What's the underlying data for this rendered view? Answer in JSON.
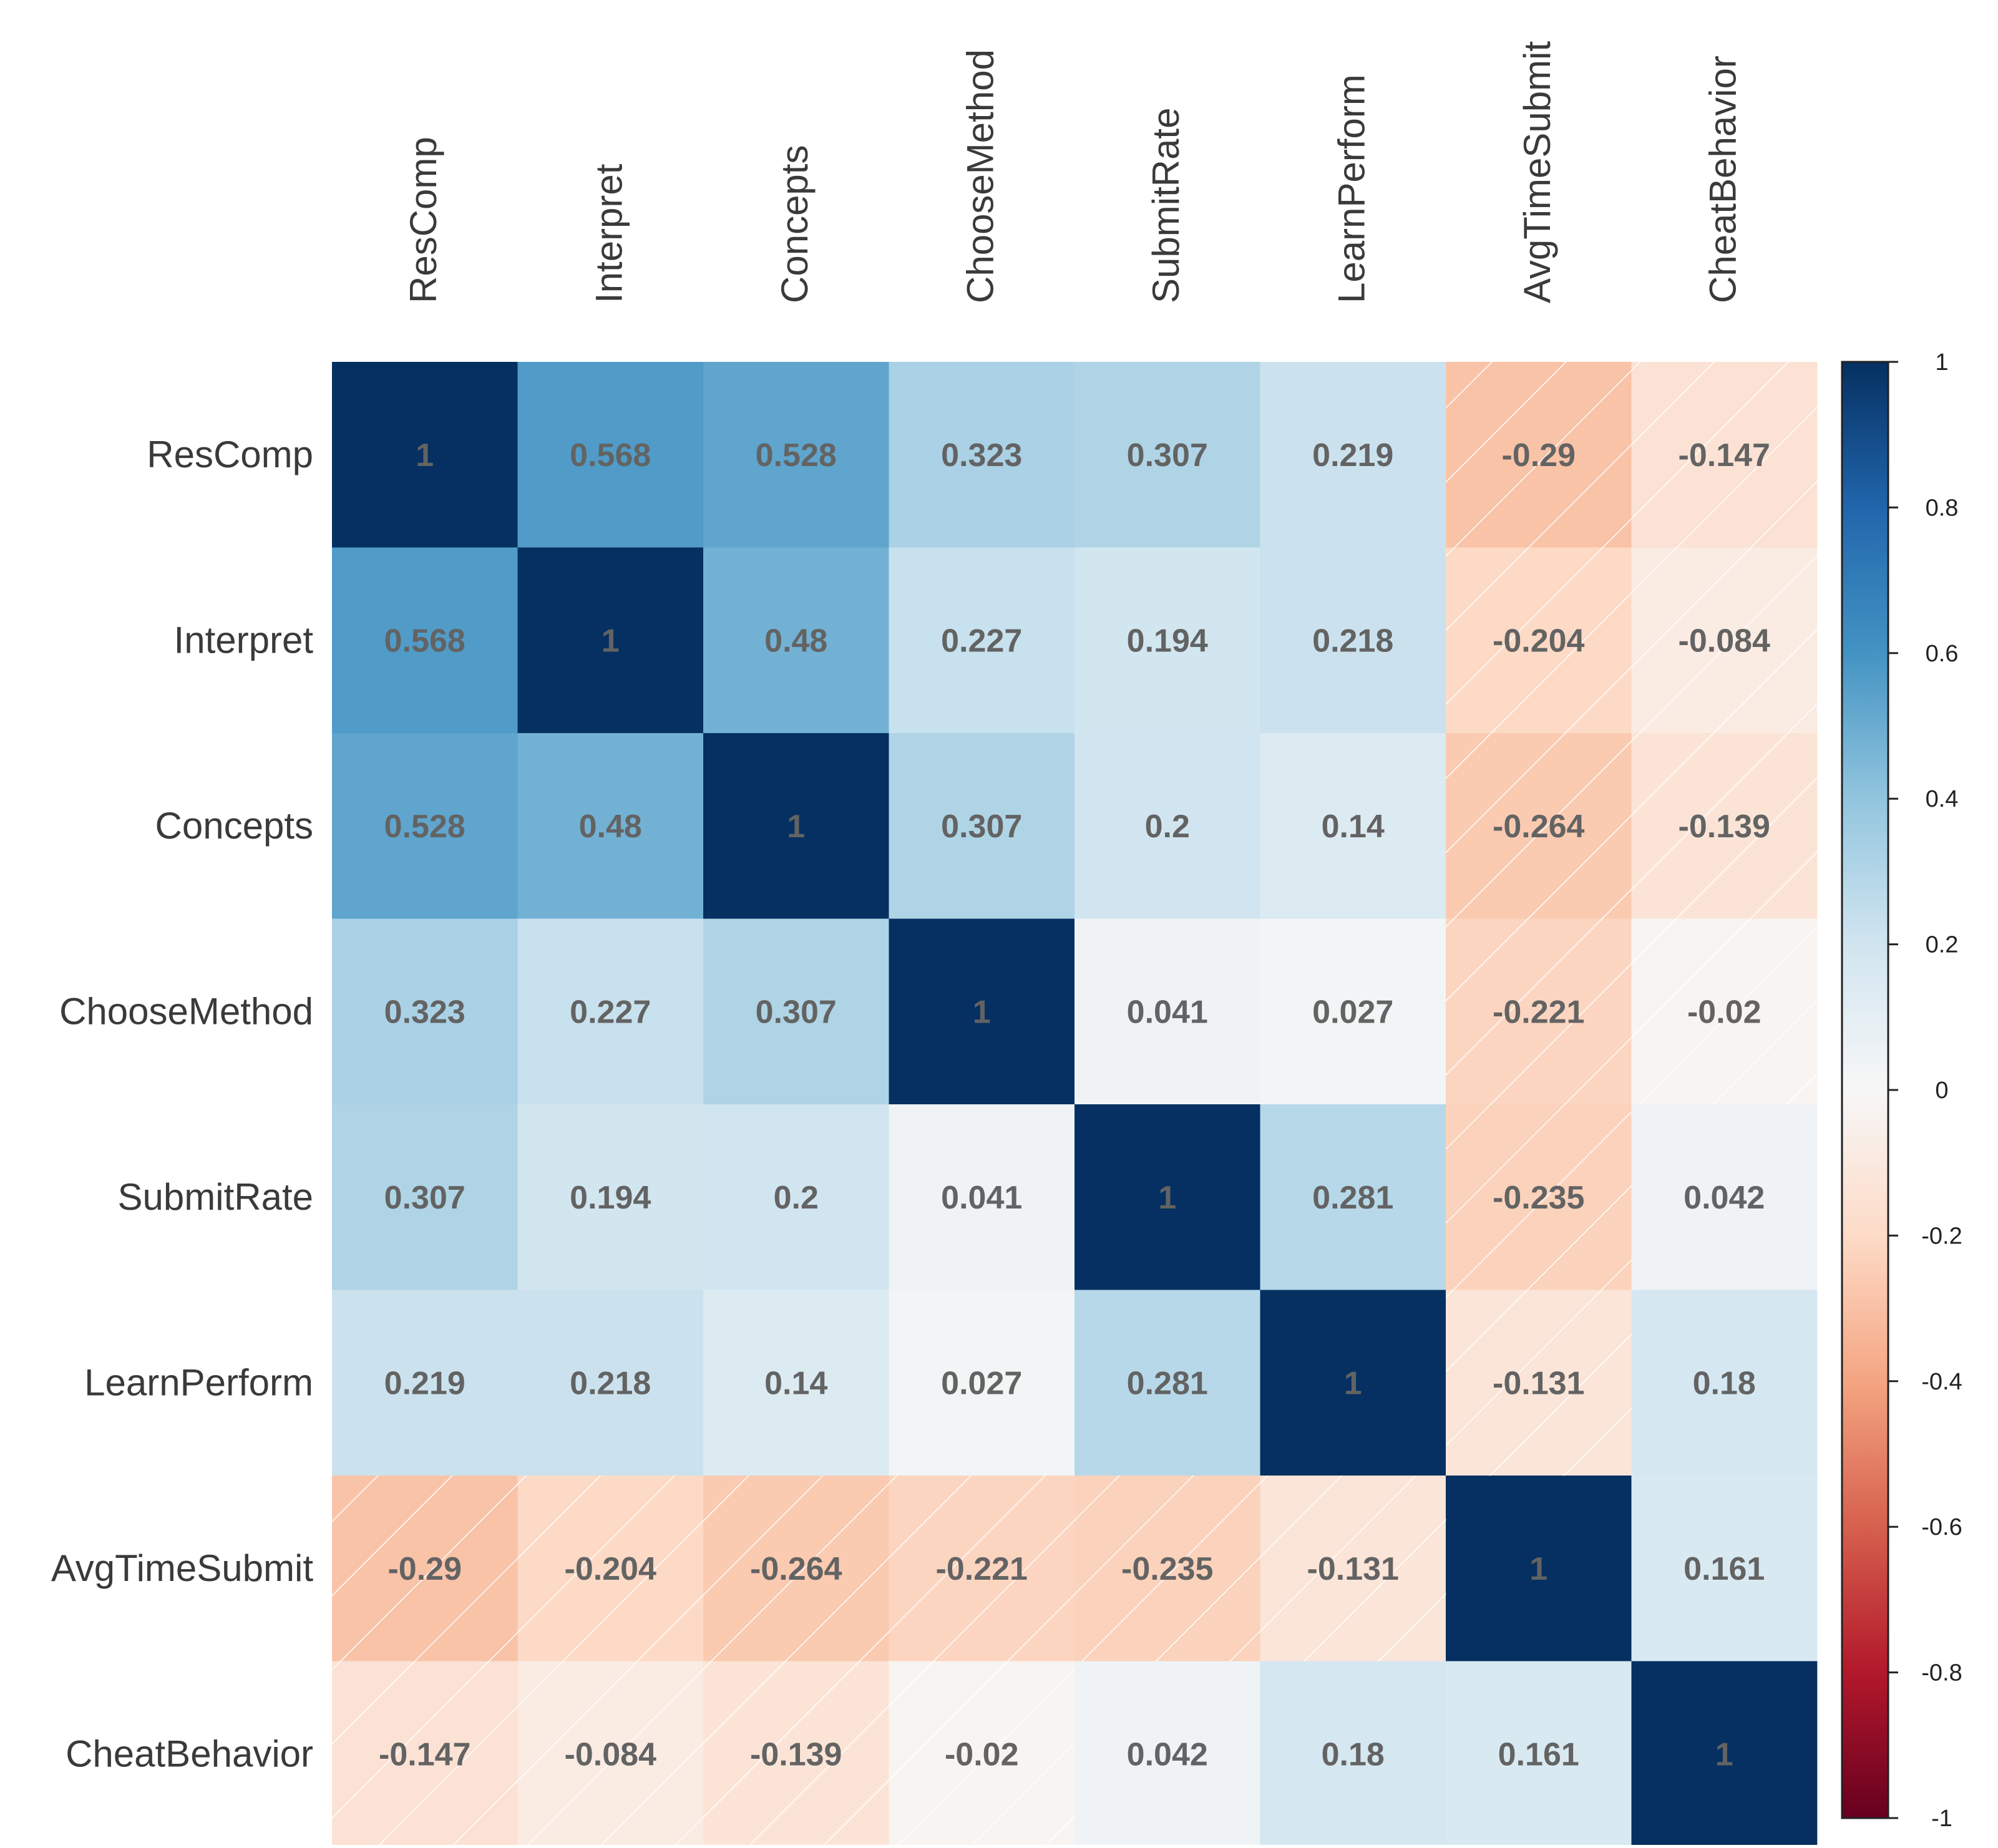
{
  "chart_data": {
    "type": "heatmap",
    "title": "",
    "xlabel": "",
    "ylabel": "",
    "variables": [
      "ResComp",
      "Interpret",
      "Concepts",
      "ChooseMethod",
      "SubmitRate",
      "LearnPerform",
      "AvgTimeSubmit",
      "CheatBehavior"
    ],
    "matrix": [
      [
        1,
        0.568,
        0.528,
        0.323,
        0.307,
        0.219,
        -0.29,
        -0.147
      ],
      [
        0.568,
        1,
        0.48,
        0.227,
        0.194,
        0.218,
        -0.204,
        -0.084
      ],
      [
        0.528,
        0.48,
        1,
        0.307,
        0.2,
        0.14,
        -0.264,
        -0.139
      ],
      [
        0.323,
        0.227,
        0.307,
        1,
        0.041,
        0.027,
        -0.221,
        -0.02
      ],
      [
        0.307,
        0.194,
        0.2,
        0.041,
        1,
        0.281,
        -0.235,
        0.042
      ],
      [
        0.219,
        0.218,
        0.14,
        0.027,
        0.281,
        1,
        -0.131,
        0.18
      ],
      [
        -0.29,
        -0.204,
        -0.264,
        -0.221,
        -0.235,
        -0.131,
        1,
        0.161
      ],
      [
        -0.147,
        -0.084,
        -0.139,
        -0.02,
        0.042,
        0.18,
        0.161,
        1
      ]
    ],
    "value_labels": [
      [
        "1",
        "0.568",
        "0.528",
        "0.323",
        "0.307",
        "0.219",
        "-0.29",
        "-0.147"
      ],
      [
        "0.568",
        "1",
        "0.48",
        "0.227",
        "0.194",
        "0.218",
        "-0.204",
        "-0.084"
      ],
      [
        "0.528",
        "0.48",
        "1",
        "0.307",
        "0.2",
        "0.14",
        "-0.264",
        "-0.139"
      ],
      [
        "0.323",
        "0.227",
        "0.307",
        "1",
        "0.041",
        "0.027",
        "-0.221",
        "-0.02"
      ],
      [
        "0.307",
        "0.194",
        "0.2",
        "0.041",
        "1",
        "0.281",
        "-0.235",
        "0.042"
      ],
      [
        "0.219",
        "0.218",
        "0.14",
        "0.027",
        "0.281",
        "1",
        "-0.131",
        "0.18"
      ],
      [
        "-0.29",
        "-0.204",
        "-0.264",
        "-0.221",
        "-0.235",
        "-0.131",
        "1",
        "0.161"
      ],
      [
        "-0.147",
        "-0.084",
        "-0.139",
        "-0.02",
        "0.042",
        "0.18",
        "0.161",
        "1"
      ]
    ],
    "colorbar": {
      "range": [
        -1,
        1
      ],
      "ticks": [
        1,
        0.8,
        0.6,
        0.4,
        0.2,
        0,
        -0.2,
        -0.4,
        -0.6,
        -0.8,
        -1
      ],
      "tick_labels": [
        "1",
        "0.8",
        "0.6",
        "0.4",
        "0.2",
        "0",
        "-0.2",
        "-0.4",
        "-0.6",
        "-0.8",
        "-1"
      ],
      "colormap": "RdBu",
      "placement": "right"
    },
    "negative_cells_hatched": true,
    "grid": false
  },
  "colors": {
    "value_text": "#636363",
    "row_label_text": "#3a3a3a",
    "column_label_text": "#3a3a3a",
    "tick_text": "#222222",
    "hatch": "#ffffff",
    "colorbar_border": "#222222",
    "background": "#ffffff"
  }
}
